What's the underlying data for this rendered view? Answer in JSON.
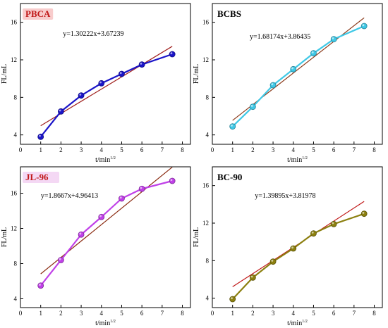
{
  "chart_data": [
    {
      "type": "line",
      "title": "PBCA",
      "annotation": "y=1.30222x+3.67239",
      "xlabel": "t/min",
      "xlabel_superscript": "1/2",
      "ylabel": "FL/mL",
      "xlim": [
        0,
        8.4
      ],
      "ylim": [
        3,
        18
      ],
      "xticks": [
        0,
        1,
        2,
        3,
        4,
        5,
        6,
        7,
        8
      ],
      "yticks": [
        4,
        8,
        12,
        16
      ],
      "series": [
        {
          "color": "#1a14c8",
          "x": [
            1,
            2,
            3,
            4,
            5,
            6,
            7.5
          ],
          "values": [
            3.8,
            6.5,
            8.2,
            9.5,
            10.5,
            11.5,
            12.6
          ]
        }
      ],
      "fit": {
        "slope": 1.30222,
        "intercept": 3.67239,
        "x_range": [
          1,
          7.5
        ],
        "color": "#a0201e"
      },
      "colors": {
        "title": "#c01818",
        "title_bg": "#f8cccc"
      }
    },
    {
      "type": "line",
      "title": "BCBS",
      "annotation": "y=1.68174x+3.86435",
      "xlabel": "t/min",
      "xlabel_superscript": "1/2",
      "ylabel": "FL/mL",
      "xlim": [
        0,
        8.4
      ],
      "ylim": [
        3,
        18
      ],
      "xticks": [
        0,
        1,
        2,
        3,
        4,
        5,
        6,
        7,
        8
      ],
      "yticks": [
        4,
        8,
        12,
        16
      ],
      "series": [
        {
          "color": "#3fc8e6",
          "x": [
            1,
            2,
            3,
            4,
            5,
            6,
            7.5
          ],
          "values": [
            4.9,
            7.0,
            9.3,
            11.0,
            12.7,
            14.2,
            15.6
          ]
        }
      ],
      "fit": {
        "slope": 1.68174,
        "intercept": 3.86435,
        "x_range": [
          1,
          7.5
        ],
        "color": "#8a3a1a"
      },
      "colors": {
        "title": "#000000",
        "title_bg": "none"
      }
    },
    {
      "type": "line",
      "title": "JL-96",
      "annotation": "y=1.8667x+4.96413",
      "xlabel": "t/min",
      "xlabel_superscript": "1/2",
      "ylabel": "FL/mL",
      "xlim": [
        0,
        8.4
      ],
      "ylim": [
        3,
        19
      ],
      "xticks": [
        0,
        1,
        2,
        3,
        4,
        5,
        6,
        7,
        8
      ],
      "yticks": [
        4,
        8,
        12,
        16
      ],
      "series": [
        {
          "color": "#c040e8",
          "x": [
            1,
            2,
            3,
            4,
            5,
            6,
            7.5
          ],
          "values": [
            5.5,
            8.4,
            11.3,
            13.3,
            15.4,
            16.5,
            17.4
          ]
        }
      ],
      "fit": {
        "slope": 1.8667,
        "intercept": 4.96413,
        "x_range": [
          1,
          7.5
        ],
        "color": "#8a2a10"
      },
      "colors": {
        "title": "#c01818",
        "title_bg": "#f4d8f4"
      }
    },
    {
      "type": "line",
      "title": "BC-90",
      "annotation": "y=1.39895x+3.81978",
      "xlabel": "t/min",
      "xlabel_superscript": "1/2",
      "ylabel": "FL/mL",
      "xlim": [
        0,
        8.4
      ],
      "ylim": [
        3,
        18
      ],
      "xticks": [
        0,
        1,
        2,
        3,
        4,
        5,
        6,
        7,
        8
      ],
      "yticks": [
        4,
        8,
        12,
        16
      ],
      "series": [
        {
          "color": "#8c8010",
          "x": [
            1,
            2,
            3,
            4,
            5,
            6,
            7.5
          ],
          "values": [
            3.9,
            6.2,
            7.9,
            9.3,
            10.9,
            11.9,
            13.0
          ]
        }
      ],
      "fit": {
        "slope": 1.39895,
        "intercept": 3.81978,
        "x_range": [
          1,
          7.5
        ],
        "color": "#c01818"
      },
      "colors": {
        "title": "#000000",
        "title_bg": "none"
      }
    }
  ]
}
